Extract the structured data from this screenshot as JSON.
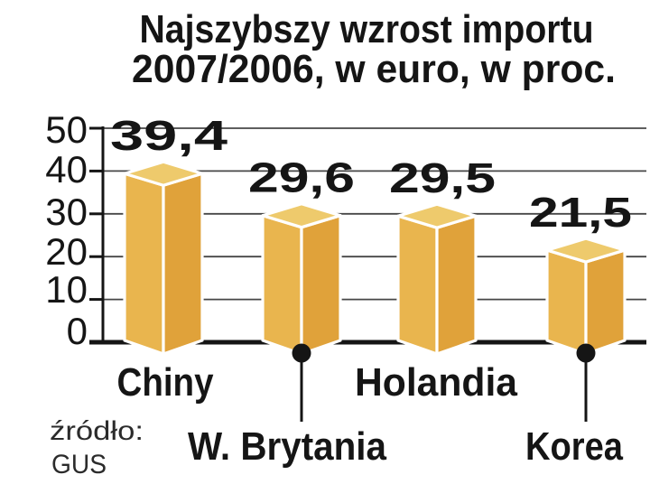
{
  "title": {
    "line1": "Najszybszy wzrost importu",
    "line2": "2007/2006, w euro, w proc."
  },
  "source": {
    "label": "źródło:",
    "name": "GUS"
  },
  "chart_data": {
    "type": "bar",
    "style": "3d-columns",
    "title": "Najszybszy wzrost importu 2007/2006, w euro, w proc.",
    "categories": [
      "Chiny",
      "W. Brytania",
      "Holandia",
      "Korea"
    ],
    "values": [
      39.4,
      29.6,
      29.5,
      21.5
    ],
    "value_labels": [
      "39,4",
      "29,6",
      "29,5",
      "21,5"
    ],
    "value_label_colors": [
      "#c41e3c",
      "#151515",
      "#151515",
      "#151515"
    ],
    "category_label_row": [
      "upper",
      "lower",
      "upper",
      "lower"
    ],
    "ylim": [
      0,
      50
    ],
    "yticks": [
      0,
      10,
      20,
      30,
      40,
      50
    ],
    "ytick_labels": [
      "0",
      "10",
      "20",
      "30",
      "40",
      "50"
    ],
    "grid": true,
    "legend": false,
    "xlabel": "",
    "ylabel": "",
    "source": "źródło: GUS",
    "colors": {
      "bar_top": "#eeca6c",
      "bar_left": "#e9b54e",
      "bar_right": "#e0a23a",
      "edge": "#ffffff",
      "grid": "#474747",
      "axis": "#151515",
      "accent": "#c41e3c",
      "text": "#151515",
      "background": "#ffffff"
    }
  }
}
